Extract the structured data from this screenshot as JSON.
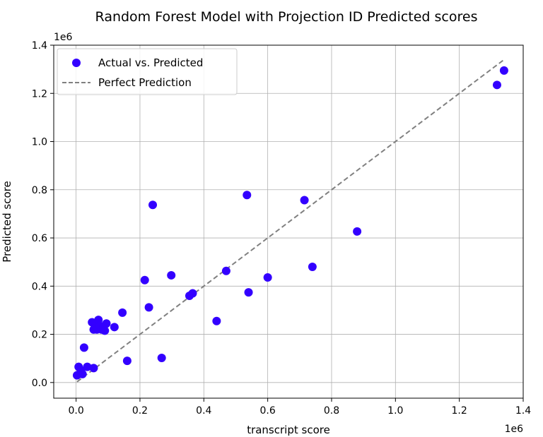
{
  "chart_data": {
    "type": "scatter",
    "title": "Random Forest Model with Projection ID Predicted scores",
    "xlabel": "transcript score",
    "ylabel": "Predicted score",
    "x_offset_label": "1e6",
    "y_offset_label": "1e6",
    "xlim": [
      -0.07,
      1.4
    ],
    "ylim": [
      -0.065,
      1.4
    ],
    "x_ticks": [
      0.0,
      0.2,
      0.4,
      0.6,
      0.8,
      1.0,
      1.2,
      1.4
    ],
    "x_tick_labels": [
      "0.0",
      "0.2",
      "0.4",
      "0.6",
      "0.8",
      "1.0",
      "1.2",
      "1.4"
    ],
    "y_ticks": [
      0.0,
      0.2,
      0.4,
      0.6,
      0.8,
      1.0,
      1.2,
      1.4
    ],
    "y_tick_labels": [
      "0.0",
      "0.2",
      "0.4",
      "0.6",
      "0.8",
      "1.0",
      "1.2",
      "1.4"
    ],
    "grid": true,
    "legend_position": "top-left",
    "series": [
      {
        "name": "Actual vs. Predicted",
        "kind": "scatter",
        "color": "#3300ff",
        "points": [
          [
            0.003,
            0.03
          ],
          [
            0.008,
            0.065
          ],
          [
            0.015,
            0.05
          ],
          [
            0.02,
            0.035
          ],
          [
            0.025,
            0.145
          ],
          [
            0.035,
            0.065
          ],
          [
            0.05,
            0.25
          ],
          [
            0.055,
            0.22
          ],
          [
            0.055,
            0.06
          ],
          [
            0.06,
            0.24
          ],
          [
            0.065,
            0.22
          ],
          [
            0.07,
            0.26
          ],
          [
            0.075,
            0.235
          ],
          [
            0.08,
            0.22
          ],
          [
            0.085,
            0.23
          ],
          [
            0.09,
            0.215
          ],
          [
            0.095,
            0.245
          ],
          [
            0.12,
            0.23
          ],
          [
            0.145,
            0.29
          ],
          [
            0.16,
            0.09
          ],
          [
            0.215,
            0.425
          ],
          [
            0.228,
            0.312
          ],
          [
            0.24,
            0.737
          ],
          [
            0.268,
            0.102
          ],
          [
            0.298,
            0.445
          ],
          [
            0.355,
            0.36
          ],
          [
            0.365,
            0.37
          ],
          [
            0.44,
            0.255
          ],
          [
            0.47,
            0.463
          ],
          [
            0.535,
            0.778
          ],
          [
            0.54,
            0.374
          ],
          [
            0.6,
            0.436
          ],
          [
            0.715,
            0.757
          ],
          [
            0.74,
            0.48
          ],
          [
            0.88,
            0.627
          ],
          [
            1.318,
            1.235
          ],
          [
            1.34,
            1.295
          ]
        ]
      },
      {
        "name": "Perfect Prediction",
        "kind": "line",
        "color": "#808080",
        "dash": true,
        "points": [
          [
            0.003,
            0.003
          ],
          [
            1.34,
            1.34
          ]
        ]
      }
    ]
  }
}
